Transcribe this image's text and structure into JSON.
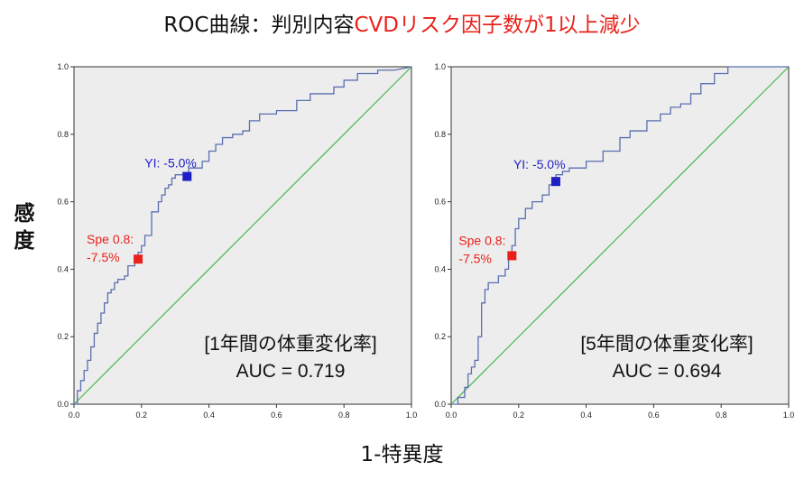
{
  "title": {
    "prefix": "ROC曲線：判別内容",
    "highlight": "CVDリスク因子数が1以上減少"
  },
  "ylabel_chars": [
    "感",
    "度"
  ],
  "xlabel": "1-特異度",
  "colors": {
    "curve": "#5b6fb0",
    "diagonal": "#49b649",
    "yi_marker": "#1d1fc4",
    "spe_marker": "#e8221b",
    "panel_bg": "#ededed"
  },
  "chart_data": [
    {
      "type": "line",
      "subtitle": "[1年間の体重変化率]",
      "auc_text": "AUC = 0.719",
      "xlim": [
        0,
        1
      ],
      "ylim": [
        0,
        1
      ],
      "xticks": [
        "0.0",
        "0.2",
        "0.4",
        "0.6",
        "0.8",
        "1.0"
      ],
      "yticks": [
        "0.0",
        "0.2",
        "0.4",
        "0.6",
        "0.8",
        "1.0"
      ],
      "grid": false,
      "series": [
        {
          "x": [
            0,
            0.01,
            0.01,
            0.02,
            0.02,
            0.03,
            0.03,
            0.04,
            0.04,
            0.05,
            0.05,
            0.06,
            0.06,
            0.07,
            0.07,
            0.08,
            0.08,
            0.09,
            0.09,
            0.1,
            0.1,
            0.11,
            0.11,
            0.12,
            0.12,
            0.13,
            0.13,
            0.15,
            0.15,
            0.16,
            0.16,
            0.18,
            0.18,
            0.19,
            0.19,
            0.2,
            0.2,
            0.21,
            0.21,
            0.23,
            0.23,
            0.25,
            0.25,
            0.26,
            0.26,
            0.27,
            0.27,
            0.28,
            0.28,
            0.29,
            0.29,
            0.3,
            0.3,
            0.32,
            0.32,
            0.34,
            0.34,
            0.38,
            0.38,
            0.4,
            0.4,
            0.42,
            0.42,
            0.44,
            0.44,
            0.47,
            0.47,
            0.5,
            0.5,
            0.52,
            0.52,
            0.55,
            0.55,
            0.6,
            0.6,
            0.66,
            0.66,
            0.7,
            0.7,
            0.77,
            0.77,
            0.8,
            0.8,
            0.84,
            0.84,
            0.9,
            0.9,
            0.95,
            1.0
          ],
          "y": [
            0,
            0,
            0.04,
            0.04,
            0.07,
            0.07,
            0.1,
            0.1,
            0.13,
            0.13,
            0.17,
            0.17,
            0.21,
            0.21,
            0.24,
            0.24,
            0.27,
            0.27,
            0.3,
            0.3,
            0.33,
            0.33,
            0.34,
            0.34,
            0.36,
            0.36,
            0.37,
            0.37,
            0.38,
            0.38,
            0.41,
            0.41,
            0.43,
            0.43,
            0.45,
            0.45,
            0.47,
            0.47,
            0.5,
            0.5,
            0.57,
            0.57,
            0.6,
            0.6,
            0.62,
            0.62,
            0.64,
            0.64,
            0.65,
            0.65,
            0.67,
            0.67,
            0.68,
            0.68,
            0.68,
            0.68,
            0.7,
            0.7,
            0.72,
            0.72,
            0.75,
            0.75,
            0.77,
            0.77,
            0.79,
            0.79,
            0.8,
            0.8,
            0.81,
            0.81,
            0.84,
            0.84,
            0.86,
            0.86,
            0.87,
            0.87,
            0.9,
            0.9,
            0.92,
            0.92,
            0.94,
            0.94,
            0.96,
            0.96,
            0.98,
            0.98,
            0.99,
            0.99,
            1.0
          ]
        },
        {
          "x": [
            0,
            1
          ],
          "y": [
            0,
            1
          ]
        }
      ],
      "points": [
        {
          "label": "YI: -5.0%",
          "x": 0.335,
          "y": 0.675
        },
        {
          "label_lines": [
            "Spe 0.8:",
            "-7.5%"
          ],
          "x": 0.19,
          "y": 0.43
        }
      ]
    },
    {
      "type": "line",
      "subtitle": "[5年間の体重変化率]",
      "auc_text": "AUC = 0.694",
      "xlim": [
        0,
        1
      ],
      "ylim": [
        0,
        1
      ],
      "xticks": [
        "0.0",
        "0.2",
        "0.4",
        "0.6",
        "0.8",
        "1.0"
      ],
      "yticks": [
        "0.0",
        "0.2",
        "0.4",
        "0.6",
        "0.8",
        "1.0"
      ],
      "grid": false,
      "series": [
        {
          "x": [
            0,
            0.02,
            0.02,
            0.04,
            0.04,
            0.05,
            0.05,
            0.06,
            0.06,
            0.07,
            0.07,
            0.08,
            0.08,
            0.09,
            0.09,
            0.1,
            0.1,
            0.11,
            0.11,
            0.14,
            0.14,
            0.16,
            0.16,
            0.17,
            0.17,
            0.18,
            0.18,
            0.19,
            0.19,
            0.2,
            0.2,
            0.22,
            0.22,
            0.24,
            0.24,
            0.27,
            0.27,
            0.29,
            0.29,
            0.3,
            0.3,
            0.31,
            0.31,
            0.33,
            0.33,
            0.35,
            0.35,
            0.4,
            0.4,
            0.45,
            0.45,
            0.5,
            0.5,
            0.53,
            0.53,
            0.58,
            0.58,
            0.62,
            0.62,
            0.65,
            0.65,
            0.68,
            0.68,
            0.71,
            0.71,
            0.74,
            0.74,
            0.78,
            0.78,
            0.82,
            0.82,
            1.0
          ],
          "y": [
            0,
            0,
            0.02,
            0.02,
            0.05,
            0.05,
            0.09,
            0.09,
            0.11,
            0.11,
            0.13,
            0.13,
            0.2,
            0.2,
            0.3,
            0.3,
            0.34,
            0.34,
            0.36,
            0.36,
            0.38,
            0.38,
            0.4,
            0.4,
            0.43,
            0.43,
            0.47,
            0.47,
            0.52,
            0.52,
            0.55,
            0.55,
            0.58,
            0.58,
            0.6,
            0.6,
            0.62,
            0.62,
            0.65,
            0.65,
            0.67,
            0.67,
            0.68,
            0.68,
            0.69,
            0.69,
            0.7,
            0.7,
            0.72,
            0.72,
            0.75,
            0.75,
            0.79,
            0.79,
            0.81,
            0.81,
            0.84,
            0.84,
            0.86,
            0.86,
            0.88,
            0.88,
            0.89,
            0.89,
            0.92,
            0.92,
            0.95,
            0.95,
            0.98,
            0.98,
            1.0,
            1.0
          ]
        },
        {
          "x": [
            0,
            1
          ],
          "y": [
            0,
            1
          ]
        }
      ],
      "points": [
        {
          "label": "YI: -5.0%",
          "x": 0.31,
          "y": 0.66
        },
        {
          "label_lines": [
            "Spe 0.8:",
            "-7.5%"
          ],
          "x": 0.18,
          "y": 0.44
        }
      ]
    }
  ]
}
